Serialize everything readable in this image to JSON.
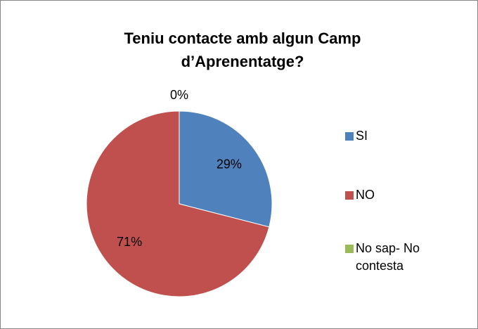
{
  "chart_data": {
    "type": "pie",
    "title": "Teniu contacte amb algun Camp d’Aprenentatge?",
    "categories": [
      "SI",
      "NO",
      "No sap- No contesta"
    ],
    "values": [
      29,
      71,
      0
    ],
    "value_labels": [
      "29%",
      "71%",
      "0%"
    ],
    "colors": [
      "#4f81bd",
      "#c0504d",
      "#9bbb59"
    ],
    "legend": "right"
  }
}
